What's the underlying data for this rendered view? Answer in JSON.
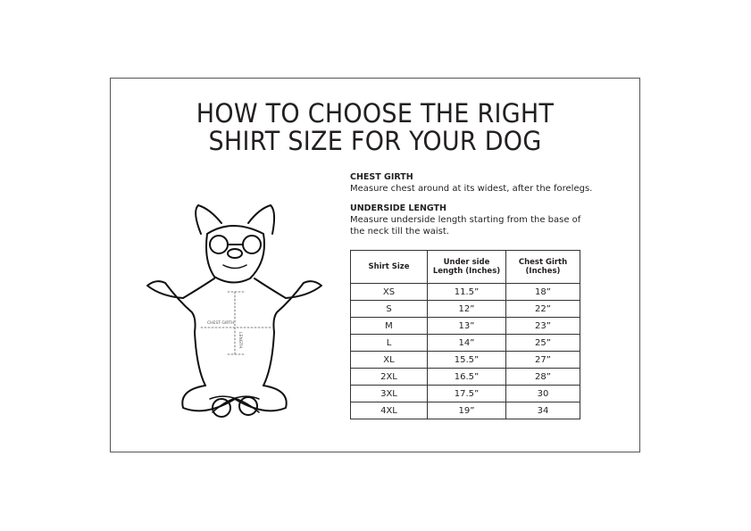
{
  "title": {
    "line1": "HOW TO CHOOSE THE RIGHT",
    "line2": "SHIRT SIZE FOR YOUR DOG"
  },
  "instructions": [
    {
      "heading": "CHEST GIRTH",
      "text": "Measure chest around at its widest, after the forelegs."
    },
    {
      "heading": "UNDERSIDE LENGTH",
      "text_line1": "Measure underside length starting from the base of",
      "text_line2": "the neck till the waist."
    }
  ],
  "illustration": {
    "chest_label": "CHEST GIRTH",
    "length_label": "LENGTH"
  },
  "table": {
    "headers": [
      [
        "Shirt Size"
      ],
      [
        "Under side",
        "Length (Inches)"
      ],
      [
        "Chest Girth",
        "(Inches)"
      ]
    ],
    "rows": [
      [
        "XS",
        "11.5”",
        "18”"
      ],
      [
        "S",
        "12”",
        "22”"
      ],
      [
        "M",
        "13”",
        "23”"
      ],
      [
        "L",
        "14”",
        "25”"
      ],
      [
        "XL",
        "15.5”",
        "27”"
      ],
      [
        "2XL",
        "16.5”",
        "28”"
      ],
      [
        "3XL",
        "17.5”",
        "30"
      ],
      [
        "4XL",
        "19”",
        "34"
      ]
    ]
  }
}
